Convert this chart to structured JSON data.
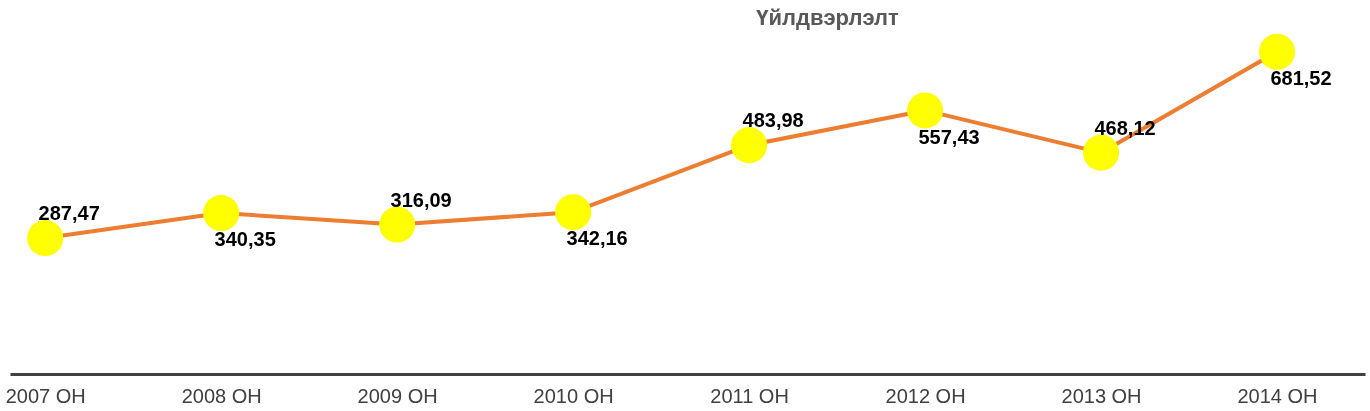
{
  "chart_data": {
    "type": "line",
    "title": "Үйлдвэрлэлт",
    "categories": [
      "2007 OH",
      "2008 OH",
      "2009 OH",
      "2010 OH",
      "2011 OH",
      "2012 OH",
      "2013 OH",
      "2014 OH"
    ],
    "series": [
      {
        "color": "#ed7d31",
        "values": [
          287.47,
          340.35,
          316.09,
          342.16,
          483.98,
          557.43,
          468.12,
          681.52
        ],
        "value_labels": [
          "287,47",
          "340,35",
          "316,09",
          "342,16",
          "483,98",
          "557,43",
          "468,12",
          "681,52"
        ]
      }
    ],
    "marker": "circle",
    "grid": false,
    "tick_labels": "x"
  }
}
